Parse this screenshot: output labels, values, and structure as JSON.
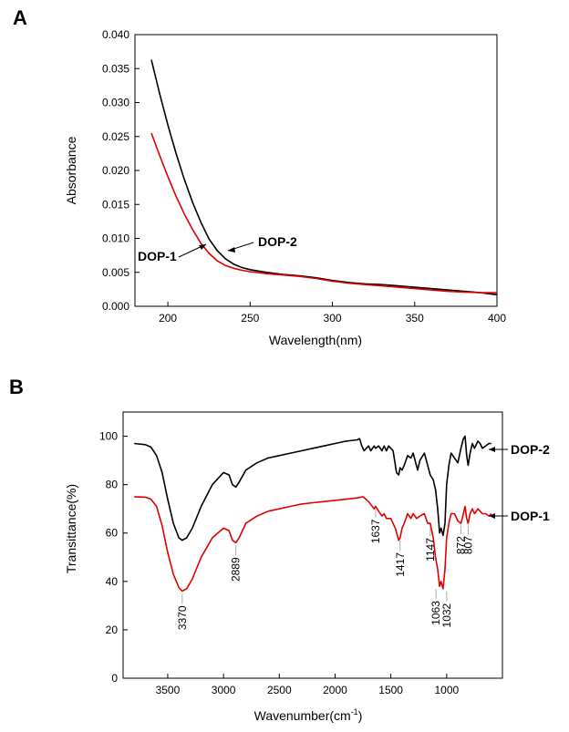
{
  "chart_data": [
    {
      "type": "line",
      "panel_label": "A",
      "xlabel": "Wavelength(nm)",
      "ylabel": "Absorbance",
      "xlim": [
        180,
        400
      ],
      "ylim": [
        0.0,
        0.04
      ],
      "xticks": [
        200,
        250,
        300,
        350,
        400
      ],
      "yticks": [
        "0.000",
        "0.005",
        "0.010",
        "0.015",
        "0.020",
        "0.025",
        "0.030",
        "0.035",
        "0.040"
      ],
      "series": [
        {
          "name": "DOP-2",
          "color": "#000000",
          "points": [
            [
              190,
              0.0363
            ],
            [
              195,
              0.0313
            ],
            [
              200,
              0.0267
            ],
            [
              205,
              0.0225
            ],
            [
              210,
              0.0187
            ],
            [
              215,
              0.0153
            ],
            [
              220,
              0.0124
            ],
            [
              225,
              0.0099
            ],
            [
              230,
              0.0082
            ],
            [
              235,
              0.007
            ],
            [
              240,
              0.0062
            ],
            [
              245,
              0.0057
            ],
            [
              250,
              0.0054
            ],
            [
              260,
              0.005
            ],
            [
              270,
              0.0047
            ],
            [
              280,
              0.0045
            ],
            [
              290,
              0.0042
            ],
            [
              300,
              0.0038
            ],
            [
              310,
              0.0035
            ],
            [
              320,
              0.0033
            ],
            [
              330,
              0.0032
            ],
            [
              340,
              0.003
            ],
            [
              350,
              0.0028
            ],
            [
              360,
              0.0026
            ],
            [
              370,
              0.0024
            ],
            [
              380,
              0.0022
            ],
            [
              390,
              0.002
            ],
            [
              400,
              0.0017
            ]
          ]
        },
        {
          "name": "DOP-1",
          "color": "#e00000",
          "points": [
            [
              190,
              0.0255
            ],
            [
              195,
              0.0222
            ],
            [
              200,
              0.0191
            ],
            [
              205,
              0.0162
            ],
            [
              210,
              0.0136
            ],
            [
              215,
              0.0113
            ],
            [
              220,
              0.0093
            ],
            [
              225,
              0.0078
            ],
            [
              230,
              0.0067
            ],
            [
              235,
              0.006
            ],
            [
              240,
              0.0056
            ],
            [
              245,
              0.0053
            ],
            [
              250,
              0.0051
            ],
            [
              260,
              0.0048
            ],
            [
              270,
              0.0046
            ],
            [
              280,
              0.0044
            ],
            [
              290,
              0.0041
            ],
            [
              300,
              0.0037
            ],
            [
              310,
              0.0034
            ],
            [
              320,
              0.0032
            ],
            [
              330,
              0.003
            ],
            [
              340,
              0.0028
            ],
            [
              350,
              0.0026
            ],
            [
              360,
              0.0024
            ],
            [
              370,
              0.0022
            ],
            [
              380,
              0.0021
            ],
            [
              390,
              0.002
            ],
            [
              400,
              0.002
            ]
          ]
        }
      ]
    },
    {
      "type": "line",
      "panel_label": "B",
      "xlabel": "Wavenumber(cm",
      "xlabel_sup": "-1",
      "xlabel_tail": ")",
      "ylabel": "Transittance(%)",
      "xlim": [
        3900,
        500
      ],
      "ylim": [
        0,
        110
      ],
      "xticks": [
        3500,
        3000,
        2500,
        2000,
        1500,
        1000
      ],
      "yticks": [
        0,
        20,
        40,
        60,
        80,
        100
      ],
      "series": [
        {
          "name": "DOP-2",
          "color": "#000000",
          "points": [
            [
              3800,
              97
            ],
            [
              3700,
              96.5
            ],
            [
              3650,
              95.5
            ],
            [
              3600,
              92
            ],
            [
              3550,
              85
            ],
            [
              3500,
              74
            ],
            [
              3450,
              64
            ],
            [
              3400,
              58
            ],
            [
              3370,
              57
            ],
            [
              3330,
              58
            ],
            [
              3280,
              62
            ],
            [
              3200,
              71
            ],
            [
              3100,
              80
            ],
            [
              3000,
              85
            ],
            [
              2950,
              84
            ],
            [
              2920,
              80
            ],
            [
              2889,
              79
            ],
            [
              2860,
              81
            ],
            [
              2800,
              86
            ],
            [
              2700,
              89
            ],
            [
              2600,
              91
            ],
            [
              2500,
              92
            ],
            [
              2400,
              93
            ],
            [
              2300,
              94
            ],
            [
              2200,
              95
            ],
            [
              2100,
              96
            ],
            [
              2000,
              97
            ],
            [
              1900,
              98
            ],
            [
              1800,
              98.5
            ],
            [
              1780,
              99
            ],
            [
              1760,
              96
            ],
            [
              1740,
              94
            ],
            [
              1700,
              96
            ],
            [
              1680,
              94
            ],
            [
              1650,
              96
            ],
            [
              1637,
              95
            ],
            [
              1610,
              96
            ],
            [
              1580,
              94
            ],
            [
              1560,
              96
            ],
            [
              1540,
              94
            ],
            [
              1520,
              96
            ],
            [
              1480,
              94
            ],
            [
              1450,
              85
            ],
            [
              1430,
              84
            ],
            [
              1417,
              87
            ],
            [
              1400,
              86
            ],
            [
              1380,
              88
            ],
            [
              1350,
              92
            ],
            [
              1320,
              91
            ],
            [
              1300,
              93
            ],
            [
              1260,
              86
            ],
            [
              1240,
              90
            ],
            [
              1200,
              93
            ],
            [
              1170,
              88
            ],
            [
              1147,
              84
            ],
            [
              1120,
              82
            ],
            [
              1100,
              78
            ],
            [
              1080,
              70
            ],
            [
              1063,
              60
            ],
            [
              1050,
              62
            ],
            [
              1032,
              59
            ],
            [
              1015,
              64
            ],
            [
              1000,
              80
            ],
            [
              980,
              88
            ],
            [
              960,
              93
            ],
            [
              930,
              91
            ],
            [
              900,
              89
            ],
            [
              872,
              95
            ],
            [
              850,
              99
            ],
            [
              835,
              100
            ],
            [
              820,
              92
            ],
            [
              807,
              88
            ],
            [
              790,
              93
            ],
            [
              770,
              97
            ],
            [
              750,
              95
            ],
            [
              720,
              98
            ],
            [
              700,
              97
            ],
            [
              680,
              95
            ],
            [
              650,
              96
            ],
            [
              620,
              97
            ],
            [
              600,
              97
            ]
          ]
        },
        {
          "name": "DOP-1",
          "color": "#e00000",
          "points": [
            [
              3800,
              75
            ],
            [
              3700,
              74.8
            ],
            [
              3650,
              74
            ],
            [
              3600,
              71
            ],
            [
              3550,
              63
            ],
            [
              3500,
              52
            ],
            [
              3450,
              43
            ],
            [
              3400,
              37.5
            ],
            [
              3370,
              36
            ],
            [
              3330,
              37
            ],
            [
              3280,
              41
            ],
            [
              3200,
              50
            ],
            [
              3100,
              58
            ],
            [
              3000,
              62
            ],
            [
              2950,
              61
            ],
            [
              2920,
              57
            ],
            [
              2889,
              56
            ],
            [
              2860,
              58
            ],
            [
              2800,
              64
            ],
            [
              2700,
              67
            ],
            [
              2600,
              69
            ],
            [
              2500,
              70
            ],
            [
              2400,
              71
            ],
            [
              2300,
              72
            ],
            [
              2200,
              72.5
            ],
            [
              2100,
              73
            ],
            [
              2000,
              73.5
            ],
            [
              1900,
              74
            ],
            [
              1800,
              74.5
            ],
            [
              1750,
              75
            ],
            [
              1700,
              73
            ],
            [
              1650,
              70
            ],
            [
              1637,
              71
            ],
            [
              1610,
              69
            ],
            [
              1580,
              67
            ],
            [
              1560,
              68
            ],
            [
              1540,
              66
            ],
            [
              1500,
              66
            ],
            [
              1460,
              62
            ],
            [
              1430,
              57
            ],
            [
              1417,
              58
            ],
            [
              1400,
              62
            ],
            [
              1380,
              64
            ],
            [
              1350,
              68
            ],
            [
              1320,
              66
            ],
            [
              1300,
              68
            ],
            [
              1270,
              66
            ],
            [
              1240,
              67
            ],
            [
              1200,
              68
            ],
            [
              1170,
              64
            ],
            [
              1147,
              64
            ],
            [
              1120,
              58
            ],
            [
              1100,
              50
            ],
            [
              1080,
              45
            ],
            [
              1063,
              38
            ],
            [
              1050,
              40
            ],
            [
              1032,
              37
            ],
            [
              1015,
              45
            ],
            [
              1000,
              58
            ],
            [
              980,
              64
            ],
            [
              960,
              68
            ],
            [
              930,
              68
            ],
            [
              900,
              65
            ],
            [
              872,
              64
            ],
            [
              850,
              68
            ],
            [
              835,
              71
            ],
            [
              820,
              66
            ],
            [
              807,
              64
            ],
            [
              790,
              68
            ],
            [
              770,
              70
            ],
            [
              750,
              68
            ],
            [
              720,
              70
            ],
            [
              700,
              69
            ],
            [
              680,
              68
            ],
            [
              650,
              68
            ],
            [
              620,
              67
            ],
            [
              600,
              68
            ]
          ]
        }
      ],
      "annotations": [
        "3370",
        "2889",
        "1637",
        "1417",
        "1147",
        "1063",
        "1032",
        "872",
        "807"
      ]
    }
  ]
}
